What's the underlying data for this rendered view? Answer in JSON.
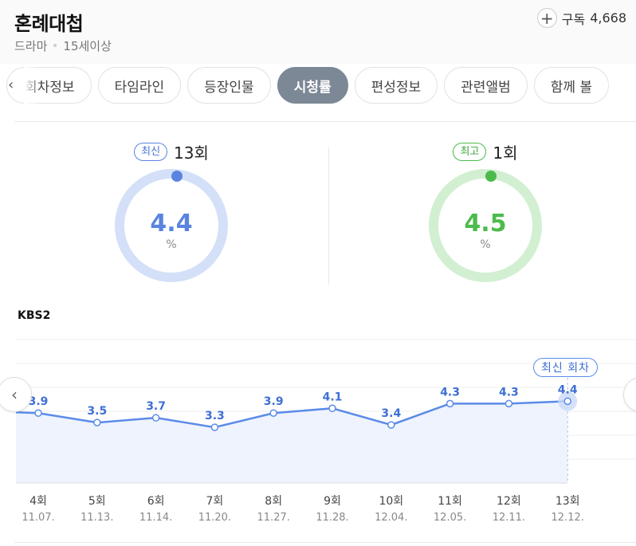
{
  "header": {
    "title": "혼례대첩",
    "genre": "드라마",
    "rating": "15세이상",
    "subscribe_label": "구독",
    "subscribe_count": "4,668"
  },
  "tabs": [
    {
      "label": "회차정보",
      "active": false
    },
    {
      "label": "타임라인",
      "active": false
    },
    {
      "label": "등장인물",
      "active": false
    },
    {
      "label": "시청률",
      "active": true
    },
    {
      "label": "편성정보",
      "active": false
    },
    {
      "label": "관련앨범",
      "active": false
    },
    {
      "label": "함께 볼",
      "active": false
    }
  ],
  "summary": {
    "latest": {
      "badge": "최신",
      "episode": "13회",
      "value": "4.4",
      "unit": "%",
      "color": "#5b84e0",
      "track": "#d4e0f8"
    },
    "best": {
      "badge": "최고",
      "episode": "1회",
      "value": "4.5",
      "unit": "%",
      "color": "#4cbb4c",
      "track": "#d2efd2"
    }
  },
  "network": "KBS2",
  "latest_tag": "최신 회차",
  "colors": {
    "line": "#5b8be8",
    "fill": "#eef3fd",
    "label": "#3d6fd4"
  },
  "chart_data": {
    "type": "line",
    "categories": [
      "4회",
      "5회",
      "6회",
      "7회",
      "8회",
      "9회",
      "10회",
      "11회",
      "12회",
      "13회"
    ],
    "dates": [
      "11.07.",
      "11.13.",
      "11.14.",
      "11.20.",
      "11.27.",
      "11.28.",
      "12.04.",
      "12.05.",
      "12.11.",
      "12.12."
    ],
    "values": [
      3.9,
      3.5,
      3.7,
      3.3,
      3.9,
      4.1,
      3.4,
      4.3,
      4.3,
      4.4
    ],
    "value_labels": [
      "3.9",
      "3.5",
      "3.7",
      "3.3",
      "3.9",
      "4.1",
      "3.4",
      "4.3",
      "4.3",
      "4.4"
    ],
    "network": "KBS2",
    "grid": true,
    "area_fill": true
  }
}
